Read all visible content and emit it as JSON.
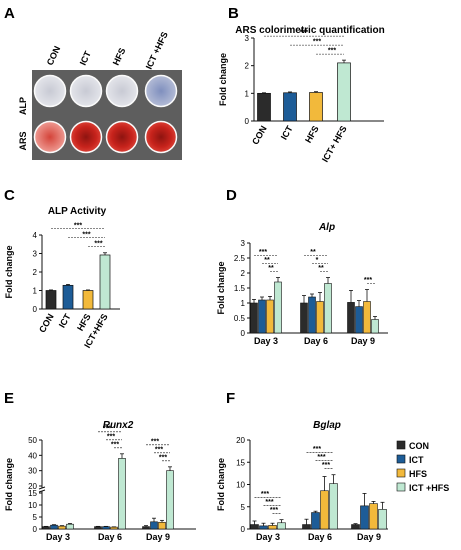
{
  "panel_a": {
    "label": "A",
    "columns": [
      "CON",
      "ICT",
      "HFS",
      "ICT +HFS"
    ],
    "rows": [
      "ALP",
      "ARS"
    ]
  },
  "legend": {
    "items": [
      {
        "name": "CON",
        "color": "#2b2b2b"
      },
      {
        "name": "ICT",
        "color": "#1d5c97"
      },
      {
        "name": "HFS",
        "color": "#f2b93b"
      },
      {
        "name": "ICT +HFS",
        "color": "#bfe8d2"
      }
    ]
  },
  "colors": {
    "CON": "#2b2b2b",
    "ICT": "#1d5c97",
    "HFS": "#f2b93b",
    "ICT+HFS": "#bfe8d2",
    "well_alp": "#d6d8df",
    "well_ars": "#cf2a22"
  },
  "chart_data": [
    {
      "panel": "B",
      "type": "bar",
      "title": "ARS colorimetric quantification",
      "ylabel": "Fold change",
      "ylim": [
        0,
        3
      ],
      "yticks": [
        0,
        1,
        2,
        3
      ],
      "categories": [
        "CON",
        "ICT",
        "HFS",
        "ICT+ HFS"
      ],
      "values": [
        1.0,
        1.02,
        1.03,
        2.1
      ],
      "errors": [
        0.02,
        0.03,
        0.03,
        0.1
      ],
      "significance": [
        {
          "from": 0,
          "to": 3,
          "label": "***"
        },
        {
          "from": 1,
          "to": 3,
          "label": "***"
        },
        {
          "from": 2,
          "to": 3,
          "label": "***"
        }
      ]
    },
    {
      "panel": "C",
      "type": "bar",
      "title": "ALP Activity",
      "ylabel": "Fold change",
      "ylim": [
        0,
        4
      ],
      "yticks": [
        0,
        1,
        2,
        3,
        4
      ],
      "categories": [
        "CON",
        "ICT",
        "HFS",
        "ICT+HFS"
      ],
      "values": [
        1.0,
        1.28,
        1.0,
        2.92
      ],
      "errors": [
        0.03,
        0.05,
        0.03,
        0.12
      ],
      "significance": [
        {
          "from": 0,
          "to": 3,
          "label": "***"
        },
        {
          "from": 1,
          "to": 3,
          "label": "***"
        },
        {
          "from": 2,
          "to": 3,
          "label": "***"
        }
      ]
    },
    {
      "panel": "D",
      "type": "bar",
      "title": "Alp",
      "ylabel": "Fold change",
      "ylim": [
        0,
        3
      ],
      "yticks": [
        0,
        0.5,
        1,
        1.5,
        2,
        2.5,
        3
      ],
      "categories": [
        "Day 3",
        "Day 6",
        "Day 9"
      ],
      "series": [
        {
          "name": "CON",
          "values": [
            1.0,
            1.0,
            1.02
          ],
          "errors": [
            0.12,
            0.25,
            0.4
          ]
        },
        {
          "name": "ICT",
          "values": [
            1.1,
            1.2,
            0.88
          ],
          "errors": [
            0.1,
            0.1,
            0.2
          ]
        },
        {
          "name": "HFS",
          "values": [
            1.1,
            1.05,
            1.05
          ],
          "errors": [
            0.12,
            0.3,
            0.4
          ]
        },
        {
          "name": "ICT +HFS",
          "values": [
            1.7,
            1.65,
            0.45
          ],
          "errors": [
            0.15,
            0.2,
            0.1
          ]
        }
      ],
      "significance": [
        {
          "group": 0,
          "from": 0,
          "to": 3,
          "label": "***"
        },
        {
          "group": 0,
          "from": 1,
          "to": 3,
          "label": "**"
        },
        {
          "group": 0,
          "from": 2,
          "to": 3,
          "label": "**"
        },
        {
          "group": 1,
          "from": 0,
          "to": 3,
          "label": "**"
        },
        {
          "group": 1,
          "from": 1,
          "to": 3,
          "label": "*"
        },
        {
          "group": 1,
          "from": 2,
          "to": 3,
          "label": "**"
        },
        {
          "group": 2,
          "from": 2,
          "to": 3,
          "label": "***"
        }
      ]
    },
    {
      "panel": "E",
      "type": "bar",
      "title": "Runx2",
      "ylabel": "Fold change",
      "ylim": [
        0,
        50
      ],
      "yticks": [
        0,
        5,
        10,
        15,
        20,
        30,
        40,
        50
      ],
      "categories": [
        "Day 3",
        "Day 6",
        "Day 9"
      ],
      "series": [
        {
          "name": "CON",
          "values": [
            1.0,
            1.0,
            1.0
          ],
          "errors": [
            0.1,
            0.1,
            0.4
          ]
        },
        {
          "name": "ICT",
          "values": [
            1.6,
            1.0,
            3.0
          ],
          "errors": [
            0.2,
            0.1,
            1.5
          ]
        },
        {
          "name": "HFS",
          "values": [
            1.2,
            0.8,
            2.8
          ],
          "errors": [
            0.2,
            0.1,
            0.8
          ]
        },
        {
          "name": "ICT +HFS",
          "values": [
            2.0,
            38.0,
            30.0
          ],
          "errors": [
            0.3,
            3.0,
            2.5
          ]
        }
      ],
      "significance": [
        {
          "group": 1,
          "from": 0,
          "to": 3,
          "label": "***"
        },
        {
          "group": 1,
          "from": 1,
          "to": 3,
          "label": "***"
        },
        {
          "group": 1,
          "from": 2,
          "to": 3,
          "label": "***"
        },
        {
          "group": 2,
          "from": 0,
          "to": 3,
          "label": "***"
        },
        {
          "group": 2,
          "from": 1,
          "to": 3,
          "label": "***"
        },
        {
          "group": 2,
          "from": 2,
          "to": 3,
          "label": "***"
        }
      ]
    },
    {
      "panel": "F",
      "type": "bar",
      "title": "Bglap",
      "ylabel": "Fold change",
      "ylim": [
        0,
        20
      ],
      "yticks": [
        0,
        5,
        10,
        15,
        20
      ],
      "categories": [
        "Day 3",
        "Day 6",
        "Day 9"
      ],
      "series": [
        {
          "name": "CON",
          "values": [
            1.0,
            1.0,
            1.0
          ],
          "errors": [
            0.8,
            1.2,
            0.2
          ]
        },
        {
          "name": "ICT",
          "values": [
            0.7,
            3.7,
            5.2
          ],
          "errors": [
            0.6,
            0.3,
            2.8
          ]
        },
        {
          "name": "HFS",
          "values": [
            0.8,
            8.6,
            5.7
          ],
          "errors": [
            0.5,
            3.2,
            0.5
          ]
        },
        {
          "name": "ICT +HFS",
          "values": [
            1.4,
            10.2,
            4.4
          ],
          "errors": [
            0.7,
            2.0,
            1.6
          ]
        }
      ],
      "significance": [
        {
          "group": 0,
          "from": 0,
          "to": 3,
          "label": "***"
        },
        {
          "group": 0,
          "from": 1,
          "to": 3,
          "label": "***"
        },
        {
          "group": 0,
          "from": 2,
          "to": 3,
          "label": "***"
        },
        {
          "group": 1,
          "from": 0,
          "to": 3,
          "label": "***"
        },
        {
          "group": 1,
          "from": 1,
          "to": 3,
          "label": "***"
        },
        {
          "group": 1,
          "from": 2,
          "to": 3,
          "label": "***"
        }
      ]
    }
  ]
}
